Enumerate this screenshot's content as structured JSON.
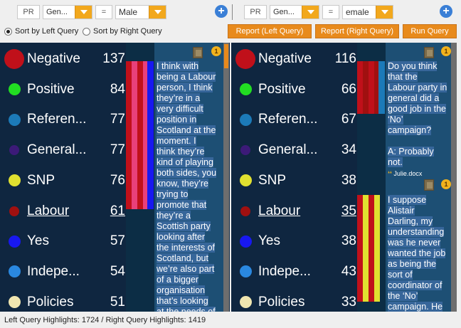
{
  "left_query": {
    "pr": "PR",
    "attribute": "Gen...",
    "operator": "=",
    "value": "Male"
  },
  "right_query": {
    "pr": "PR",
    "attribute": "Gen...",
    "operator": "=",
    "value": "emale"
  },
  "sort": {
    "left_label": "Sort by Left Query",
    "right_label": "Sort by Right Query",
    "selected": "left"
  },
  "buttons": {
    "report_left": "Report (Left Query)",
    "report_right": "Report (Right Query)",
    "run": "Run Query"
  },
  "left_codes": [
    {
      "name": "Negative",
      "count": "137",
      "color": "#c0101a"
    },
    {
      "name": "Positive",
      "count": "84",
      "color": "#22dd22"
    },
    {
      "name": "Referen...",
      "count": "77",
      "color": "#1c7ab8"
    },
    {
      "name": "General...",
      "count": "77",
      "color": "#3c1a78"
    },
    {
      "name": "SNP",
      "count": "76",
      "color": "#e0e030"
    },
    {
      "name": "Labour",
      "count": "61",
      "color": "#a01010"
    },
    {
      "name": "Yes",
      "count": "57",
      "color": "#1818f0"
    },
    {
      "name": "Indepe...",
      "count": "54",
      "color": "#2a88e0"
    },
    {
      "name": "Policies",
      "count": "51",
      "color": "#f0e6b0"
    }
  ],
  "right_codes": [
    {
      "name": "Negative",
      "count": "116",
      "color": "#c0101a"
    },
    {
      "name": "Positive",
      "count": "66",
      "color": "#22dd22"
    },
    {
      "name": "Referen...",
      "count": "67",
      "color": "#1c7ab8"
    },
    {
      "name": "General...",
      "count": "34",
      "color": "#3c1a78"
    },
    {
      "name": "SNP",
      "count": "38",
      "color": "#e0e030"
    },
    {
      "name": "Labour",
      "count": "35",
      "color": "#a01010"
    },
    {
      "name": "Yes",
      "count": "38",
      "color": "#1818f0"
    },
    {
      "name": "Indepe...",
      "count": "43",
      "color": "#2a88e0"
    },
    {
      "name": "Policies",
      "count": "33",
      "color": "#f0e6b0"
    }
  ],
  "left_snippet_lines": [
    "I think with",
    "being a Labour",
    "person, I think",
    "they’re in a",
    "very difficult",
    "position in",
    "Scotland at the",
    "moment.   I",
    "think they’re",
    "kind of playing",
    "both sides, you",
    "know, they’re",
    "trying to",
    "promote that",
    "they’re a",
    "Scottish party",
    "looking after",
    "the interests of",
    "Scotland,  but",
    "we’re also part",
    "of a bigger",
    "organisation",
    "that’s looking",
    "at the needs of"
  ],
  "right_snippet1_lines": [
    "Do you think",
    "that the",
    "Labour party in",
    "general did a",
    "good job in the",
    "‘No’",
    "campaign?",
    "",
    "A:  Probably",
    "not."
  ],
  "right_file": "Julie.docx",
  "right_snippet2_lines": [
    "I suppose",
    "Alistair",
    "Darling,  my",
    "understanding",
    "was  he never",
    "wanted the job",
    "as being the",
    "sort of",
    "coordinator of",
    "the ‘No’",
    "campaign.  He"
  ],
  "badge": "1",
  "status": "Left Query Highlights: 1724 / Right Query Highlights: 1419"
}
